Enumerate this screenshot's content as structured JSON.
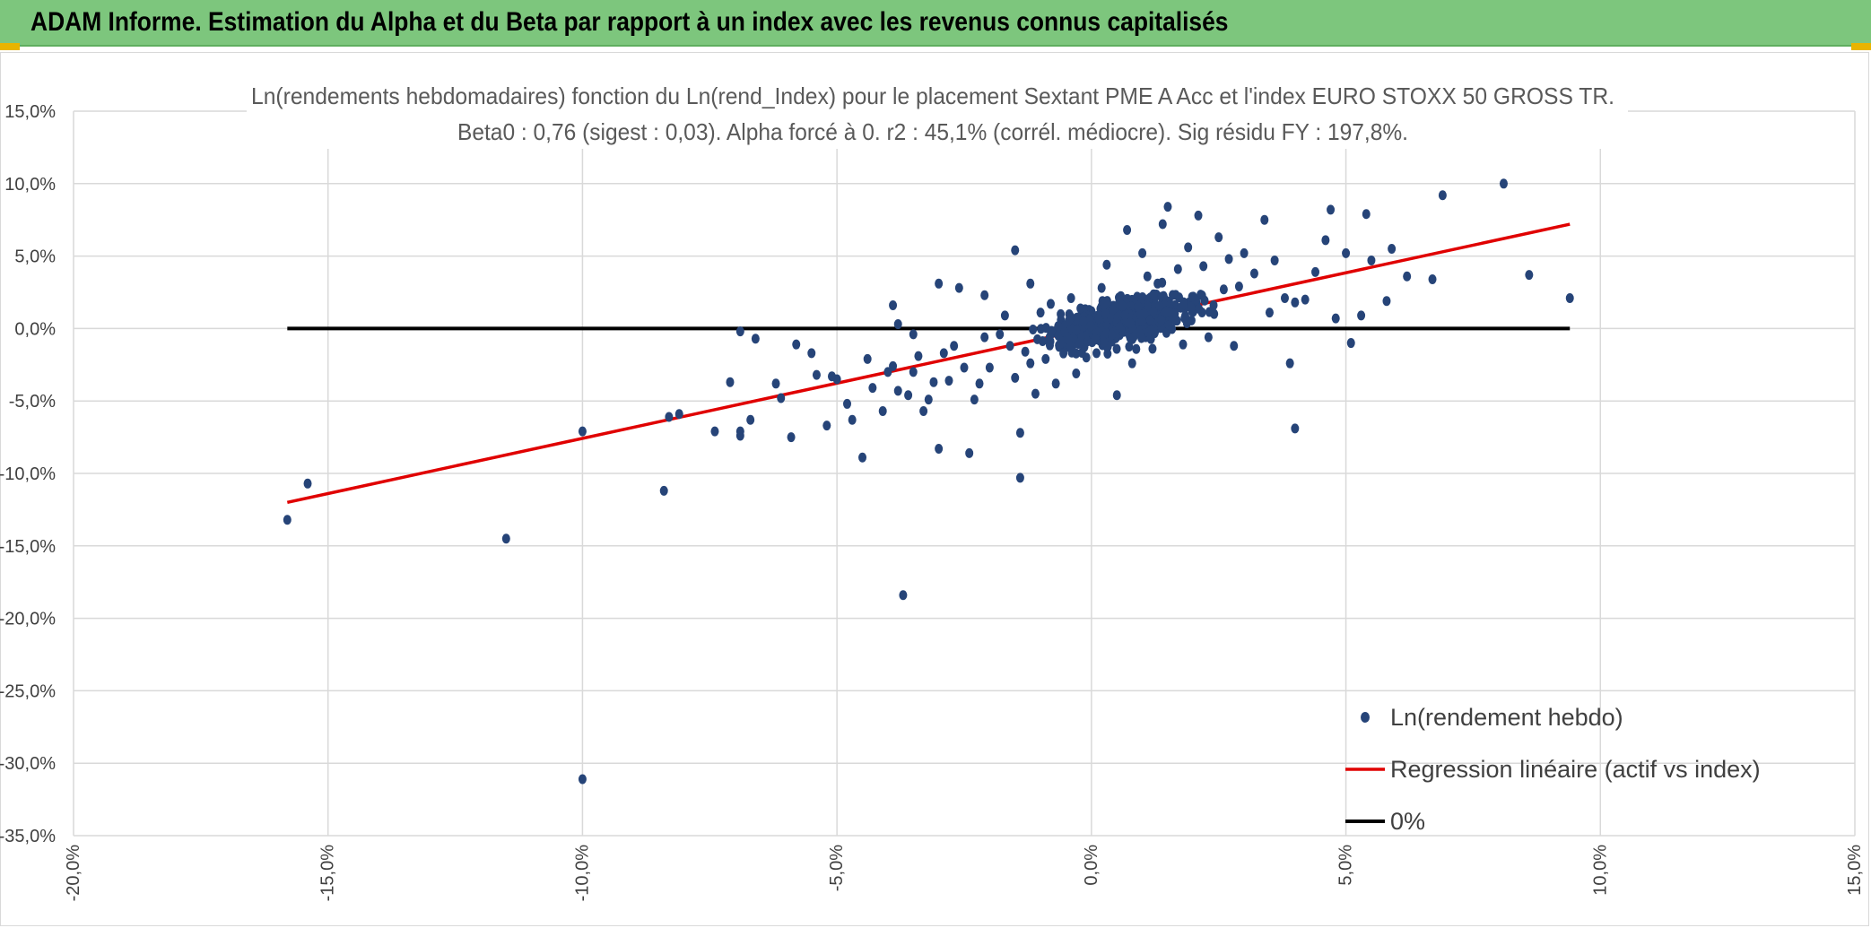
{
  "header": {
    "title": "ADAM Informe. Estimation du Alpha et du Beta par rapport à un index avec les revenus connus capitalisés"
  },
  "colors": {
    "header_bg": "#7dc67d",
    "corner_accent": "#e8b400",
    "points": "#264478",
    "regression": "#e00000",
    "zero_line": "#000000",
    "gridlines": "#d9d9d9"
  },
  "chart_data": {
    "type": "scatter",
    "title": "Ln(rendements hebdomadaires) fonction du Ln(rend_Index) pour le placement Sextant PME A Acc et l'index EURO STOXX 50 GROSS TR.",
    "subtitle": "Beta0 : 0,76 (sigest : 0,03). Alpha forcé à 0. r2 : 45,1% (corrél. médiocre). Sig résidu FY : 197,8%.",
    "xlim": [
      -0.2,
      0.15
    ],
    "ylim": [
      -0.35,
      0.15
    ],
    "x_ticks": [
      "-20,0%",
      "-15,0%",
      "-10,0%",
      "-5,0%",
      "0,0%",
      "5,0%",
      "10,0%",
      "15,0%"
    ],
    "y_ticks": [
      "15,0%",
      "10,0%",
      "5,0%",
      "0,0%",
      "-5,0%",
      "-10,0%",
      "-15,0%",
      "-20,0%",
      "-25,0%",
      "-30,0%",
      "-35,0%"
    ],
    "grid": true,
    "legend_position": "bottom-right",
    "series": [
      {
        "name": "Ln(rendement hebdo)",
        "kind": "scatter",
        "points": [
          [
            -0.158,
            -0.132
          ],
          [
            -0.154,
            -0.107
          ],
          [
            -0.115,
            -0.145
          ],
          [
            -0.1,
            -0.071
          ],
          [
            -0.1,
            -0.311
          ],
          [
            -0.084,
            -0.112
          ],
          [
            -0.083,
            -0.061
          ],
          [
            -0.081,
            -0.059
          ],
          [
            -0.074,
            -0.071
          ],
          [
            -0.071,
            -0.037
          ],
          [
            -0.069,
            -0.071
          ],
          [
            -0.069,
            -0.074
          ],
          [
            -0.067,
            -0.063
          ],
          [
            -0.069,
            -0.002
          ],
          [
            -0.066,
            -0.007
          ],
          [
            -0.062,
            -0.038
          ],
          [
            -0.061,
            -0.048
          ],
          [
            -0.059,
            -0.075
          ],
          [
            -0.058,
            -0.011
          ],
          [
            -0.055,
            -0.017
          ],
          [
            -0.054,
            -0.032
          ],
          [
            -0.052,
            -0.067
          ],
          [
            -0.051,
            -0.033
          ],
          [
            -0.05,
            -0.035
          ],
          [
            -0.048,
            -0.052
          ],
          [
            -0.047,
            -0.063
          ],
          [
            -0.045,
            -0.089
          ],
          [
            -0.044,
            -0.021
          ],
          [
            -0.043,
            -0.041
          ],
          [
            -0.041,
            -0.057
          ],
          [
            -0.04,
            -0.03
          ],
          [
            -0.039,
            -0.026
          ],
          [
            -0.038,
            -0.043
          ],
          [
            -0.036,
            -0.046
          ],
          [
            -0.035,
            -0.03
          ],
          [
            -0.039,
            0.016
          ],
          [
            -0.038,
            0.003
          ],
          [
            -0.037,
            -0.184
          ],
          [
            -0.035,
            -0.004
          ],
          [
            -0.034,
            -0.019
          ],
          [
            -0.033,
            -0.057
          ],
          [
            -0.032,
            -0.049
          ],
          [
            -0.031,
            -0.037
          ],
          [
            -0.03,
            -0.083
          ],
          [
            -0.03,
            0.031
          ],
          [
            -0.029,
            -0.017
          ],
          [
            -0.028,
            -0.036
          ],
          [
            -0.027,
            -0.012
          ],
          [
            -0.026,
            0.028
          ],
          [
            -0.025,
            -0.027
          ],
          [
            -0.024,
            -0.086
          ],
          [
            -0.023,
            -0.049
          ],
          [
            -0.022,
            -0.038
          ],
          [
            -0.021,
            -0.006
          ],
          [
            -0.021,
            0.023
          ],
          [
            -0.02,
            -0.027
          ],
          [
            -0.018,
            -0.004
          ],
          [
            -0.017,
            0.009
          ],
          [
            -0.016,
            -0.012
          ],
          [
            -0.015,
            -0.034
          ],
          [
            -0.014,
            -0.072
          ],
          [
            -0.013,
            -0.016
          ],
          [
            -0.015,
            0.054
          ],
          [
            -0.014,
            -0.103
          ],
          [
            -0.012,
            -0.024
          ],
          [
            -0.012,
            0.031
          ],
          [
            -0.011,
            -0.045
          ],
          [
            -0.01,
            0.011
          ],
          [
            -0.009,
            -0.021
          ],
          [
            -0.008,
            0.017
          ],
          [
            -0.007,
            -0.038
          ],
          [
            -0.006,
            0.006
          ],
          [
            -0.005,
            -0.013
          ],
          [
            -0.004,
            0.021
          ],
          [
            -0.003,
            -0.031
          ],
          [
            -0.002,
            0.009
          ],
          [
            -0.001,
            -0.02
          ],
          [
            0.0,
            0.012
          ],
          [
            0.001,
            0.004
          ],
          [
            0.001,
            -0.017
          ],
          [
            0.002,
            0.028
          ],
          [
            0.003,
            0.044
          ],
          [
            0.004,
            -0.009
          ],
          [
            0.005,
            -0.046
          ],
          [
            0.006,
            0.019
          ],
          [
            0.007,
            0.068
          ],
          [
            0.008,
            -0.024
          ],
          [
            0.009,
            0.022
          ],
          [
            0.01,
            0.052
          ],
          [
            0.011,
            0.036
          ],
          [
            0.012,
            -0.014
          ],
          [
            0.013,
            0.031
          ],
          [
            0.014,
            0.072
          ],
          [
            0.015,
            0.084
          ],
          [
            0.016,
            0.009
          ],
          [
            0.017,
            0.041
          ],
          [
            0.018,
            -0.011
          ],
          [
            0.019,
            0.056
          ],
          [
            0.02,
            0.022
          ],
          [
            0.021,
            0.078
          ],
          [
            0.022,
            0.043
          ],
          [
            0.023,
            -0.006
          ],
          [
            0.024,
            0.016
          ],
          [
            0.025,
            0.063
          ],
          [
            0.026,
            0.027
          ],
          [
            0.027,
            0.048
          ],
          [
            0.028,
            -0.012
          ],
          [
            0.029,
            0.029
          ],
          [
            0.03,
            0.052
          ],
          [
            0.032,
            0.038
          ],
          [
            0.034,
            0.075
          ],
          [
            0.035,
            0.011
          ],
          [
            0.036,
            0.047
          ],
          [
            0.038,
            0.021
          ],
          [
            0.039,
            -0.024
          ],
          [
            0.04,
            0.018
          ],
          [
            0.04,
            -0.069
          ],
          [
            0.042,
            0.02
          ],
          [
            0.044,
            0.039
          ],
          [
            0.046,
            0.061
          ],
          [
            0.047,
            0.082
          ],
          [
            0.048,
            0.007
          ],
          [
            0.05,
            0.052
          ],
          [
            0.051,
            -0.01
          ],
          [
            0.053,
            0.009
          ],
          [
            0.054,
            0.079
          ],
          [
            0.055,
            0.047
          ],
          [
            0.058,
            0.019
          ],
          [
            0.059,
            0.055
          ],
          [
            0.062,
            0.036
          ],
          [
            0.067,
            0.034
          ],
          [
            0.069,
            0.092
          ],
          [
            0.081,
            0.1
          ],
          [
            0.086,
            0.037
          ],
          [
            0.094,
            0.021
          ]
        ]
      },
      {
        "name": "Regression linéaire (actif vs index)",
        "kind": "line",
        "points": [
          [
            -0.158,
            -0.12
          ],
          [
            0.094,
            0.072
          ]
        ]
      },
      {
        "name": "0%",
        "kind": "line",
        "points": [
          [
            -0.158,
            0.0
          ],
          [
            0.094,
            0.0
          ]
        ]
      }
    ]
  }
}
